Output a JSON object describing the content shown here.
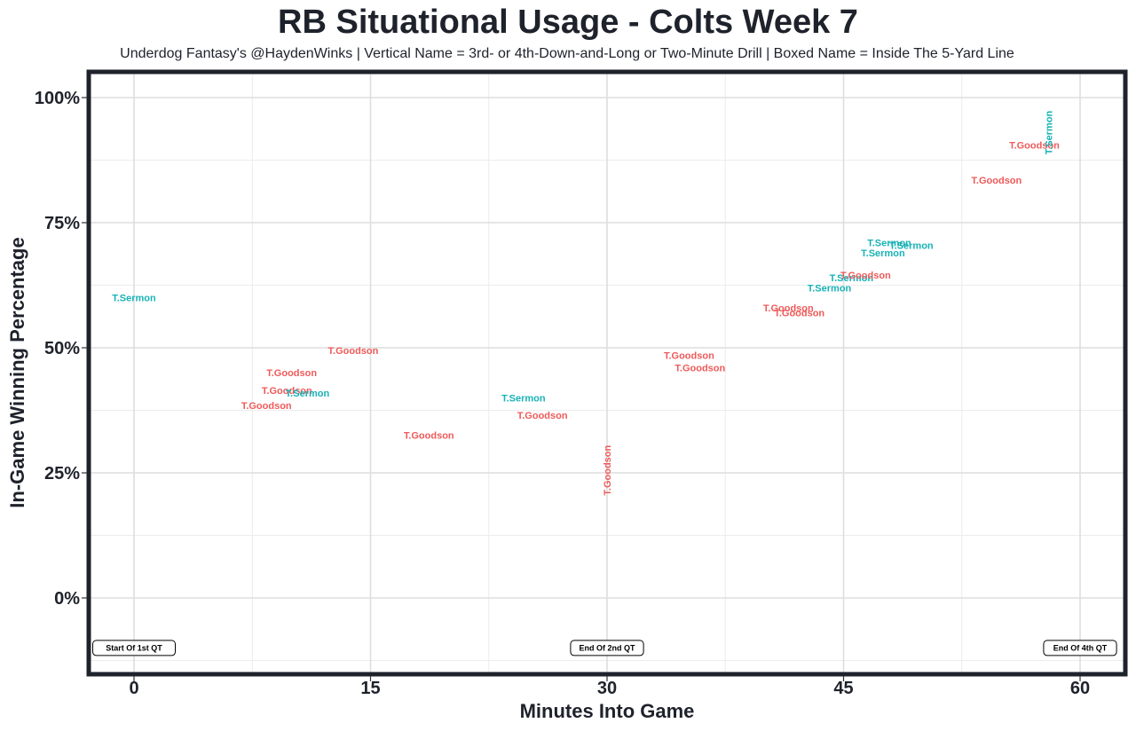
{
  "chart_data": {
    "type": "scatter",
    "title": "RB Situational Usage - Colts Week 7",
    "subtitle": "Underdog Fantasy's @HaydenWinks | Vertical Name = 3rd- or 4th-Down-and-Long or Two-Minute Drill | Boxed Name = Inside The 5-Yard Line",
    "xlabel": "Minutes Into Game",
    "ylabel": "In-Game Winning Percentage",
    "xlim": [
      -2.2,
      63.5
    ],
    "ylim": [
      -15,
      105
    ],
    "x_ticks": [
      0,
      15,
      30,
      45,
      60
    ],
    "x_tick_labels": [
      "0",
      "15",
      "30",
      "45",
      "60"
    ],
    "y_ticks": [
      0,
      25,
      50,
      75,
      100
    ],
    "y_tick_labels": [
      "0%",
      "25%",
      "50%",
      "75%",
      "100%"
    ],
    "grid": true,
    "legend": "none",
    "colors": {
      "T.Sermon": "#17b2b6",
      "T.Goodson": "#ef5a5a"
    },
    "points": [
      {
        "player": "T.Sermon",
        "x": 0.0,
        "y": 60.0,
        "vertical": false
      },
      {
        "player": "T.Goodson",
        "x": 13.9,
        "y": 49.5,
        "vertical": false
      },
      {
        "player": "T.Goodson",
        "x": 10.0,
        "y": 45.0,
        "vertical": false
      },
      {
        "player": "T.Goodson",
        "x": 9.7,
        "y": 41.5,
        "vertical": false
      },
      {
        "player": "T.Sermon",
        "x": 11.0,
        "y": 41.0,
        "vertical": false
      },
      {
        "player": "T.Goodson",
        "x": 8.4,
        "y": 38.5,
        "vertical": false
      },
      {
        "player": "T.Goodson",
        "x": 18.7,
        "y": 32.5,
        "vertical": false
      },
      {
        "player": "T.Sermon",
        "x": 24.7,
        "y": 40.0,
        "vertical": false
      },
      {
        "player": "T.Goodson",
        "x": 25.9,
        "y": 36.5,
        "vertical": false
      },
      {
        "player": "T.Goodson",
        "x": 30.0,
        "y": 25.5,
        "vertical": true
      },
      {
        "player": "T.Goodson",
        "x": 35.2,
        "y": 48.5,
        "vertical": false
      },
      {
        "player": "T.Goodson",
        "x": 35.9,
        "y": 46.0,
        "vertical": false
      },
      {
        "player": "T.Goodson",
        "x": 41.5,
        "y": 58.0,
        "vertical": false
      },
      {
        "player": "T.Goodson",
        "x": 42.2,
        "y": 57.0,
        "vertical": false
      },
      {
        "player": "T.Sermon",
        "x": 44.1,
        "y": 62.0,
        "vertical": false
      },
      {
        "player": "T.Sermon",
        "x": 45.5,
        "y": 64.0,
        "vertical": false
      },
      {
        "player": "T.Goodson",
        "x": 46.4,
        "y": 64.5,
        "vertical": false
      },
      {
        "player": "T.Sermon",
        "x": 47.5,
        "y": 69.0,
        "vertical": false
      },
      {
        "player": "T.Sermon",
        "x": 47.9,
        "y": 71.0,
        "vertical": false
      },
      {
        "player": "T.Sermon",
        "x": 49.3,
        "y": 70.5,
        "vertical": false
      },
      {
        "player": "T.Goodson",
        "x": 54.7,
        "y": 83.5,
        "vertical": false
      },
      {
        "player": "T.Goodson",
        "x": 57.1,
        "y": 90.5,
        "vertical": false
      },
      {
        "player": "T.Sermon",
        "x": 58.0,
        "y": 93.0,
        "vertical": true
      }
    ],
    "annotations": [
      {
        "label": "Start Of 1st QT",
        "x": 0,
        "y": -10
      },
      {
        "label": "End Of 2nd QT",
        "x": 30,
        "y": -10
      },
      {
        "label": "End Of 4th QT",
        "x": 60,
        "y": -10
      }
    ]
  }
}
